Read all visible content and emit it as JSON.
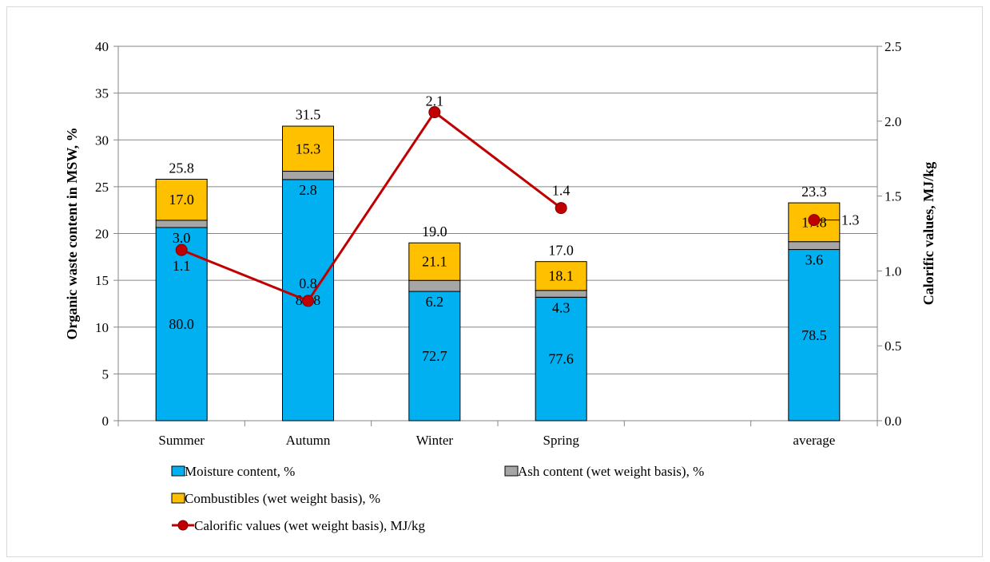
{
  "chart_data": {
    "type": "bar",
    "stacked": true,
    "categories": [
      "Summer",
      "Autumn",
      "Winter",
      "Spring",
      "",
      "average"
    ],
    "ylabel": "Organic waste content in MSW, %",
    "ylabel_right": "Calorific values, MJ/kg",
    "ylim": [
      0,
      40
    ],
    "yticks": [
      "0",
      "5",
      "10",
      "15",
      "20",
      "25",
      "30",
      "35",
      "40"
    ],
    "ylim_right": [
      0,
      2.5
    ],
    "yticks_right": [
      "0.0",
      "0.5",
      "1.0",
      "1.5",
      "2.0",
      "2.5"
    ],
    "grid": true,
    "legend_position": "bottom",
    "totals": [
      25.8,
      31.5,
      19.0,
      17.0,
      null,
      23.3
    ],
    "totals_labels": [
      "25.8",
      "31.5",
      "19.0",
      "17.0",
      "",
      "23.3"
    ],
    "series": [
      {
        "name": "Moisture content, %",
        "color": "#00b0f0",
        "labels": [
          "80.0",
          "81.8",
          "72.7",
          "77.6",
          "",
          "78.5"
        ]
      },
      {
        "name": "Ash content (wet weight basis), %",
        "color": "#a6a6a6",
        "labels": [
          "3.0",
          "2.8",
          "6.2",
          "4.3",
          "",
          "3.6"
        ]
      },
      {
        "name": "Combustibles (wet weight basis), %",
        "color": "#ffc000",
        "labels": [
          "17.0",
          "15.3",
          "21.1",
          "18.1",
          "",
          "17.8"
        ]
      }
    ],
    "line_series": {
      "name": "Calorific values (wet weight basis), MJ/kg",
      "axis": "right",
      "color": "#c00000",
      "values": [
        1.14,
        0.8,
        2.06,
        1.42,
        null,
        1.34
      ],
      "labels": [
        "1.1",
        "0.8",
        "2.1",
        "1.4",
        "",
        "1.3"
      ]
    }
  }
}
